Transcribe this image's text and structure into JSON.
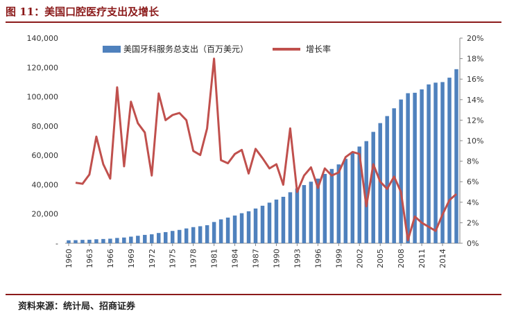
{
  "page": {
    "title": "图 11：美国口腔医疗支出及增长",
    "source": "资料来源：统计局、招商证券"
  },
  "chart_data": {
    "type": "bar+line",
    "title": "图 11：美国口腔医疗支出及增长",
    "x": [
      1960,
      1961,
      1962,
      1963,
      1964,
      1965,
      1966,
      1967,
      1968,
      1969,
      1970,
      1971,
      1972,
      1973,
      1974,
      1975,
      1976,
      1977,
      1978,
      1979,
      1980,
      1981,
      1982,
      1983,
      1984,
      1985,
      1986,
      1987,
      1988,
      1989,
      1990,
      1991,
      1992,
      1993,
      1994,
      1995,
      1996,
      1997,
      1998,
      1999,
      2000,
      2001,
      2002,
      2003,
      2004,
      2005,
      2006,
      2007,
      2008,
      2009,
      2010,
      2011,
      2012,
      2013,
      2014,
      2015,
      2016
    ],
    "x_tick_labels": [
      "1960",
      "1963",
      "1966",
      "1969",
      "1972",
      "1975",
      "1978",
      "1981",
      "1984",
      "1987",
      "1990",
      "1993",
      "1996",
      "1999",
      "2002",
      "2005",
      "2008",
      "2011",
      "2014"
    ],
    "series": [
      {
        "name": "美国牙科服务总支出（百万美元）",
        "type": "bar",
        "axis": "left",
        "color": "#4f81bd",
        "values": [
          2000,
          2100,
          2300,
          2400,
          2700,
          2900,
          3100,
          3600,
          3900,
          4500,
          5100,
          5700,
          6100,
          7000,
          7600,
          8400,
          9100,
          10100,
          11000,
          11600,
          12300,
          14500,
          16300,
          17500,
          18900,
          20500,
          21800,
          23700,
          25600,
          27700,
          29800,
          31700,
          34800,
          37400,
          39700,
          42000,
          44100,
          47300,
          50700,
          53800,
          57600,
          62200,
          66000,
          69700,
          76000,
          82000,
          86800,
          92100,
          98100,
          102400,
          102700,
          105000,
          108400,
          109600,
          110000,
          113000,
          118800
        ]
      },
      {
        "name": "增长率",
        "type": "line",
        "axis": "right",
        "color": "#c0504d",
        "values": [
          null,
          5.9,
          5.8,
          6.7,
          10.4,
          7.7,
          6.3,
          15.2,
          7.5,
          13.8,
          11.7,
          10.8,
          6.6,
          14.6,
          12.0,
          12.5,
          12.7,
          12.0,
          9.0,
          8.6,
          11.2,
          18.0,
          8.1,
          7.8,
          8.7,
          9.1,
          6.8,
          9.2,
          8.3,
          7.3,
          7.7,
          5.7,
          11.2,
          5.0,
          6.6,
          7.4,
          5.4,
          7.3,
          6.6,
          6.9,
          8.4,
          8.9,
          8.7,
          3.6,
          7.7,
          6.0,
          5.3,
          6.5,
          5.0,
          0.3,
          2.6,
          2.0,
          1.6,
          1.2,
          2.8,
          4.2,
          4.8
        ]
      }
    ],
    "y_left": {
      "min": 0,
      "max": 140000,
      "ticks": [
        "-",
        "20,000",
        "40,000",
        "60,000",
        "80,000",
        "100,000",
        "120,000",
        "140,000"
      ]
    },
    "y_right": {
      "min": 0,
      "max": 20,
      "ticks": [
        "0%",
        "2%",
        "4%",
        "6%",
        "8%",
        "10%",
        "12%",
        "14%",
        "16%",
        "18%",
        "20%"
      ]
    },
    "legend_position": "top-center",
    "grid": false
  }
}
